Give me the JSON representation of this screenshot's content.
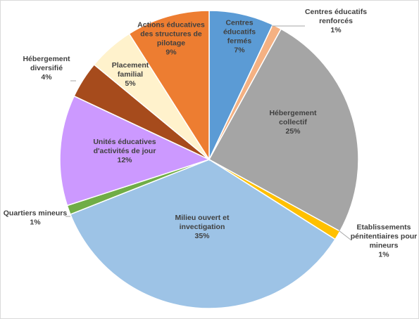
{
  "chart_data": {
    "type": "pie",
    "title": "",
    "slices": [
      {
        "lines": [
          "Centres",
          "éducatifs",
          "fermés",
          "7%"
        ],
        "value": 7,
        "color": "#5b9bd5",
        "label_mode": "inside"
      },
      {
        "lines": [
          "Centres éducatifs",
          "renforcés",
          "1%"
        ],
        "value": 1,
        "color": "#f4b183",
        "label_mode": "outside"
      },
      {
        "lines": [
          "Hébergement",
          "collectif",
          "25%"
        ],
        "value": 25,
        "color": "#a5a5a5",
        "label_mode": "inside"
      },
      {
        "lines": [
          "Etablissements",
          "pénitentiaires pour",
          "mineurs",
          "1%"
        ],
        "value": 1,
        "color": "#ffc000",
        "label_mode": "outside"
      },
      {
        "lines": [
          "Milieu ouvert et",
          "invectigation",
          "35%"
        ],
        "value": 35,
        "color": "#9dc3e6",
        "label_mode": "inside"
      },
      {
        "lines": [
          "Quartiers mineurs",
          "1%"
        ],
        "value": 1,
        "color": "#70ad47",
        "label_mode": "outside"
      },
      {
        "lines": [
          "Unités éducatives",
          "d'activités de jour",
          "12%"
        ],
        "value": 12,
        "color": "#cc99ff",
        "label_mode": "inside"
      },
      {
        "lines": [
          "Hébergement",
          "diversifié",
          "4%"
        ],
        "value": 4,
        "color": "#a64b1c",
        "label_mode": "outside"
      },
      {
        "lines": [
          "Placement",
          "familial",
          "5%"
        ],
        "value": 5,
        "color": "#fff2cc",
        "label_mode": "inside"
      },
      {
        "lines": [
          "Actions éducatives",
          "des structures de",
          "pilotage",
          "9%"
        ],
        "value": 9,
        "color": "#ed7d31",
        "label_mode": "inside"
      }
    ]
  }
}
